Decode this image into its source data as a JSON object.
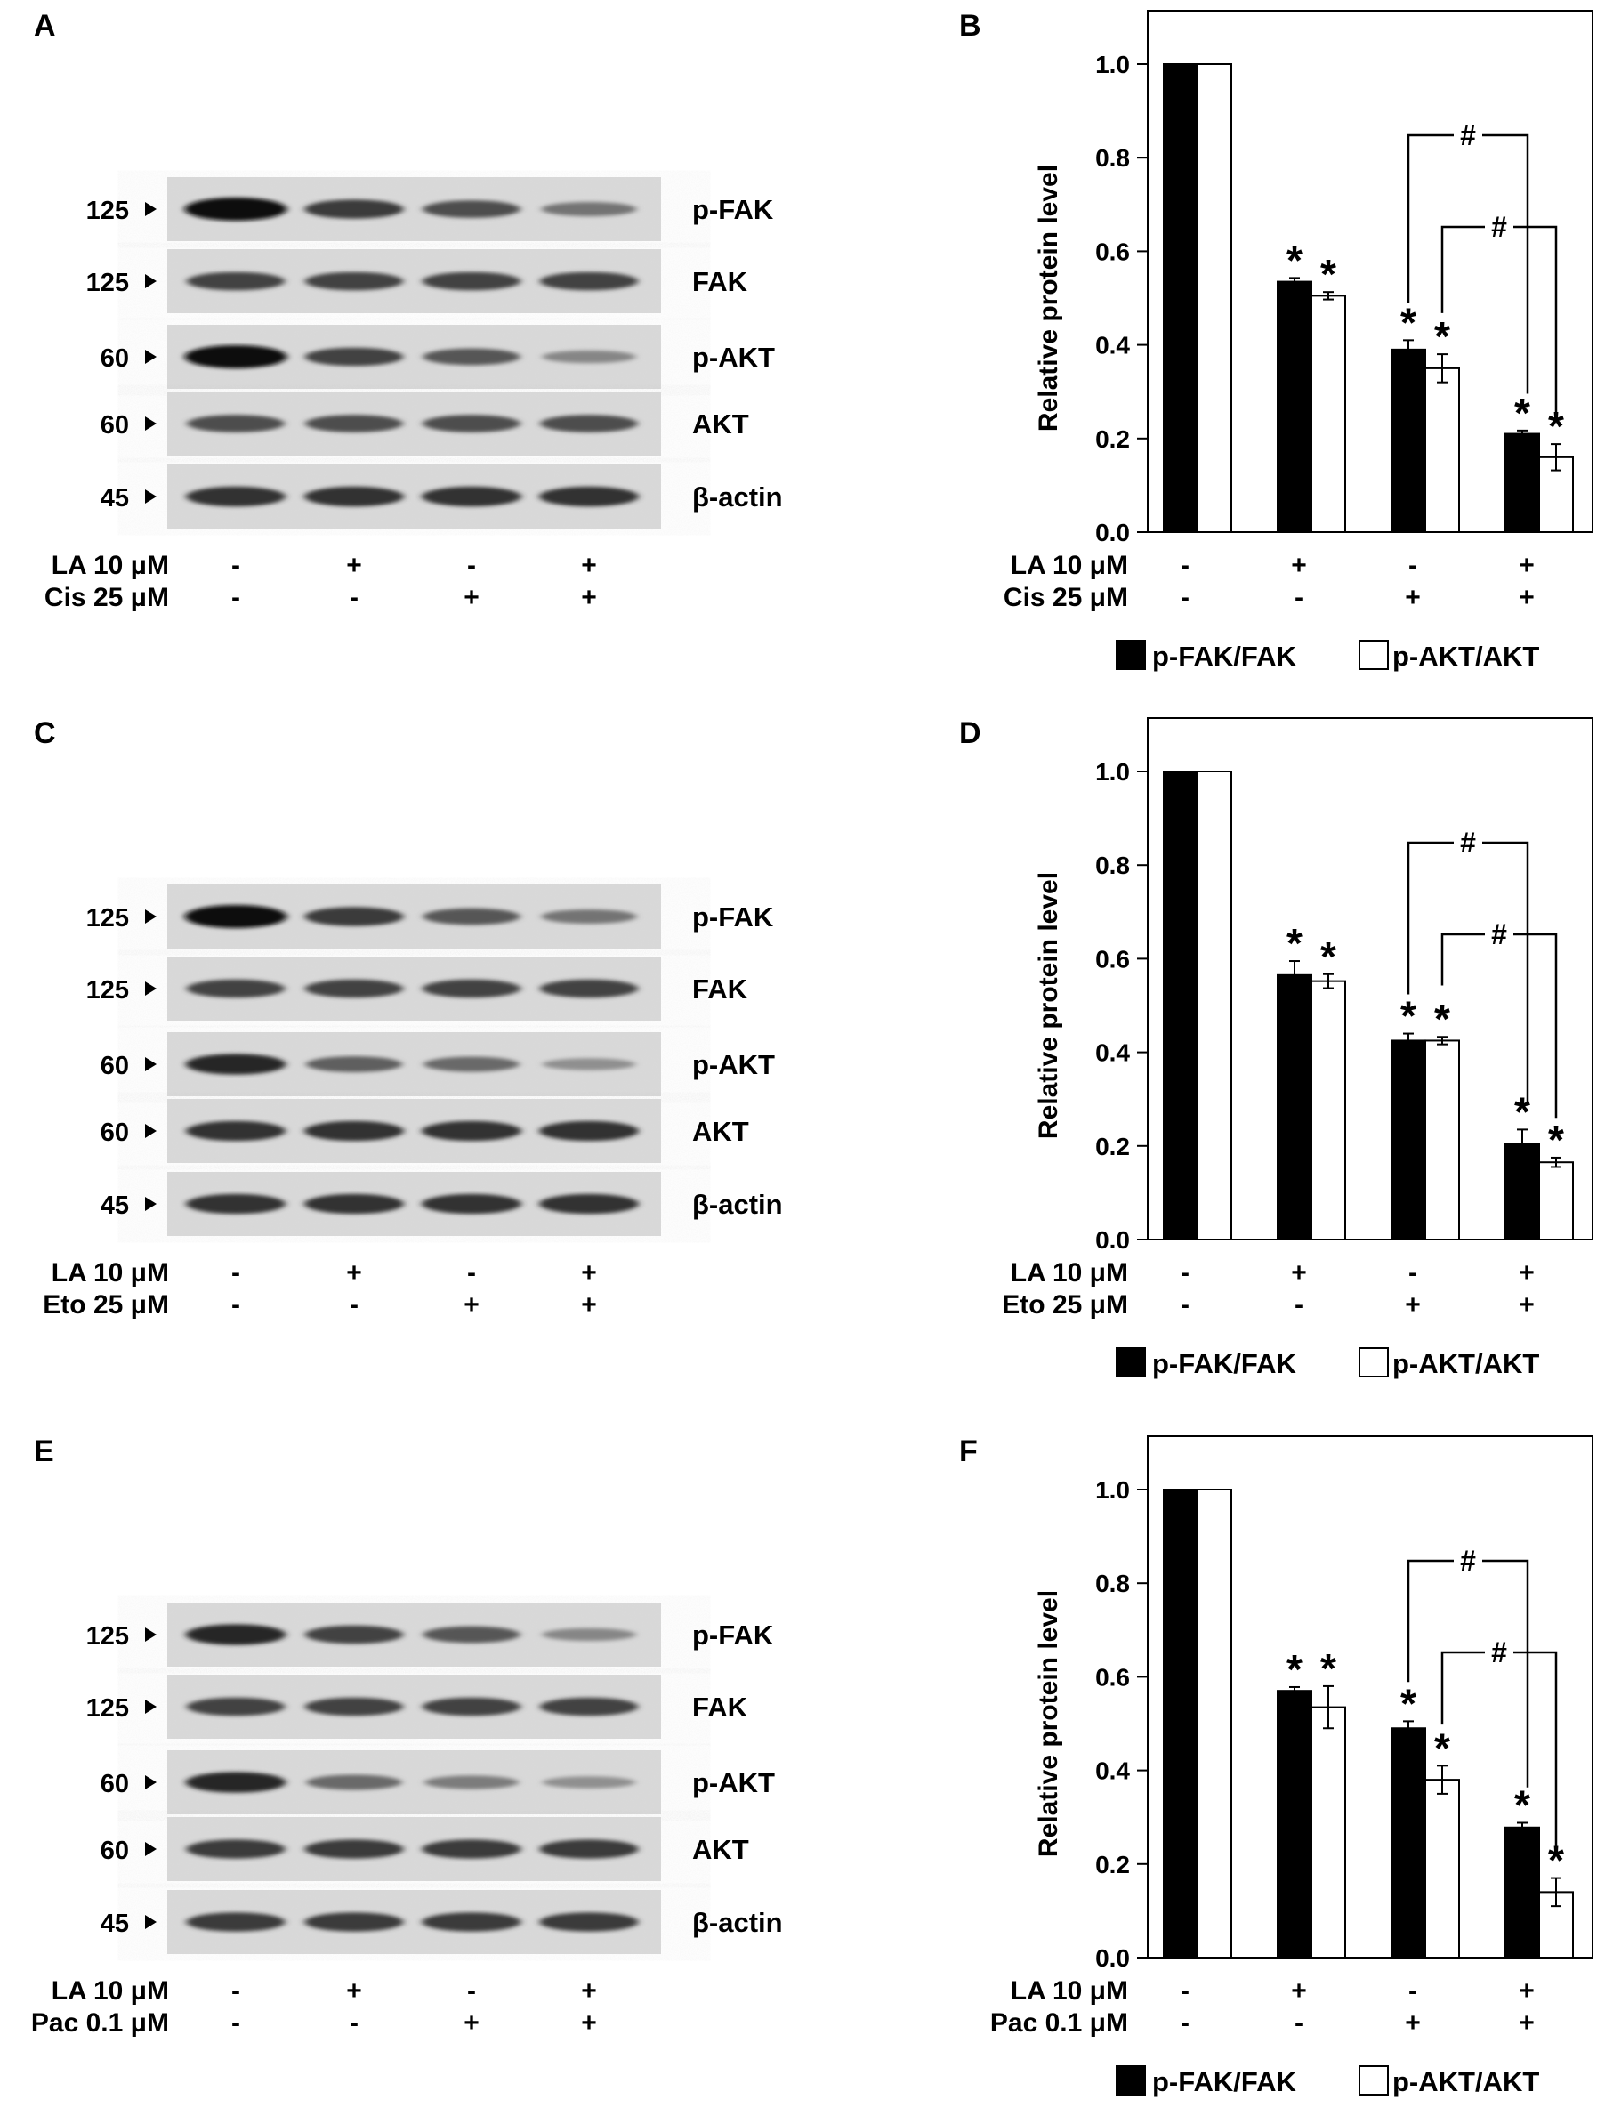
{
  "panels": [
    {
      "blot_letter": "A",
      "chart_letter": "B",
      "row_labels": [
        "LA 10 μM",
        "Cis 25 μM"
      ],
      "signs": [
        [
          "-",
          "+",
          "-",
          "+"
        ],
        [
          "-",
          "-",
          "+",
          "+"
        ]
      ],
      "band_sizes": [
        "125",
        "125",
        "60",
        "60",
        "45"
      ],
      "band_names": [
        "p-FAK",
        "FAK",
        "p-AKT",
        "AKT",
        "β-actin"
      ],
      "band_intensity": [
        [
          1.0,
          0.75,
          0.65,
          0.45
        ],
        [
          0.7,
          0.7,
          0.7,
          0.7
        ],
        [
          1.0,
          0.7,
          0.6,
          0.35
        ],
        [
          0.65,
          0.65,
          0.65,
          0.65
        ],
        [
          0.8,
          0.8,
          0.8,
          0.8
        ]
      ]
    },
    {
      "blot_letter": "C",
      "chart_letter": "D",
      "row_labels": [
        "LA 10 μM",
        "Eto 25 μM"
      ],
      "signs": [
        [
          "-",
          "+",
          "-",
          "+"
        ],
        [
          "-",
          "-",
          "+",
          "+"
        ]
      ],
      "band_sizes": [
        "125",
        "125",
        "60",
        "60",
        "45"
      ],
      "band_names": [
        "p-FAK",
        "FAK",
        "p-AKT",
        "AKT",
        "β-actin"
      ],
      "band_intensity": [
        [
          1.0,
          0.75,
          0.6,
          0.45
        ],
        [
          0.7,
          0.7,
          0.7,
          0.7
        ],
        [
          0.85,
          0.55,
          0.5,
          0.3
        ],
        [
          0.8,
          0.8,
          0.8,
          0.8
        ],
        [
          0.8,
          0.8,
          0.8,
          0.8
        ]
      ]
    },
    {
      "blot_letter": "E",
      "chart_letter": "F",
      "row_labels": [
        "LA 10 μM",
        "Pac 0.1 μM"
      ],
      "signs": [
        [
          "-",
          "+",
          "-",
          "+"
        ],
        [
          "-",
          "-",
          "+",
          "+"
        ]
      ],
      "band_sizes": [
        "125",
        "125",
        "60",
        "60",
        "45"
      ],
      "band_names": [
        "p-FAK",
        "FAK",
        "p-AKT",
        "AKT",
        "β-actin"
      ],
      "band_intensity": [
        [
          0.85,
          0.7,
          0.6,
          0.35
        ],
        [
          0.7,
          0.7,
          0.7,
          0.7
        ],
        [
          0.85,
          0.5,
          0.4,
          0.3
        ],
        [
          0.75,
          0.75,
          0.75,
          0.75
        ],
        [
          0.75,
          0.75,
          0.75,
          0.75
        ]
      ]
    }
  ],
  "chart_data": [
    {
      "type": "bar",
      "ylabel": "Relative protein level",
      "ylim": [
        0,
        1.0
      ],
      "yticks": [
        "0.0",
        "0.2",
        "0.4",
        "0.6",
        "0.8",
        "1.0"
      ],
      "legend_position": "bottom",
      "series": [
        {
          "name": "p-FAK/FAK",
          "color": "#000000",
          "values": [
            1.0,
            0.535,
            0.39,
            0.21
          ],
          "errors": [
            0,
            0.008,
            0.02,
            0.007
          ],
          "stars": [
            false,
            true,
            true,
            true
          ]
        },
        {
          "name": "p-AKT/AKT",
          "color": "#ffffff",
          "values": [
            1.0,
            0.505,
            0.35,
            0.16
          ],
          "errors": [
            0,
            0.008,
            0.03,
            0.028
          ],
          "stars": [
            false,
            true,
            true,
            true
          ]
        }
      ],
      "star_label": "*",
      "hash_label": "#"
    },
    {
      "type": "bar",
      "ylabel": "Relative protein level",
      "ylim": [
        0,
        1.0
      ],
      "yticks": [
        "0.0",
        "0.2",
        "0.4",
        "0.6",
        "0.8",
        "1.0"
      ],
      "legend_position": "bottom",
      "series": [
        {
          "name": "p-FAK/FAK",
          "color": "#000000",
          "values": [
            1.0,
            0.565,
            0.425,
            0.205
          ],
          "errors": [
            0,
            0.03,
            0.015,
            0.03
          ],
          "stars": [
            false,
            true,
            true,
            true
          ]
        },
        {
          "name": "p-AKT/AKT",
          "color": "#ffffff",
          "values": [
            1.0,
            0.552,
            0.425,
            0.165
          ],
          "errors": [
            0,
            0.015,
            0.008,
            0.01
          ],
          "stars": [
            false,
            true,
            true,
            true
          ]
        }
      ],
      "star_label": "*",
      "hash_label": "#"
    },
    {
      "type": "bar",
      "ylabel": "Relative protein level",
      "ylim": [
        0,
        1.0
      ],
      "yticks": [
        "0.0",
        "0.2",
        "0.4",
        "0.6",
        "0.8",
        "1.0"
      ],
      "legend_position": "bottom",
      "series": [
        {
          "name": "p-FAK/FAK",
          "color": "#000000",
          "values": [
            1.0,
            0.57,
            0.49,
            0.278
          ],
          "errors": [
            0,
            0.008,
            0.015,
            0.01
          ],
          "stars": [
            false,
            true,
            true,
            true
          ]
        },
        {
          "name": "p-AKT/AKT",
          "color": "#ffffff",
          "values": [
            1.0,
            0.535,
            0.38,
            0.14
          ],
          "errors": [
            0,
            0.045,
            0.03,
            0.03
          ],
          "stars": [
            false,
            true,
            true,
            true
          ]
        }
      ],
      "star_label": "*",
      "hash_label": "#"
    }
  ]
}
